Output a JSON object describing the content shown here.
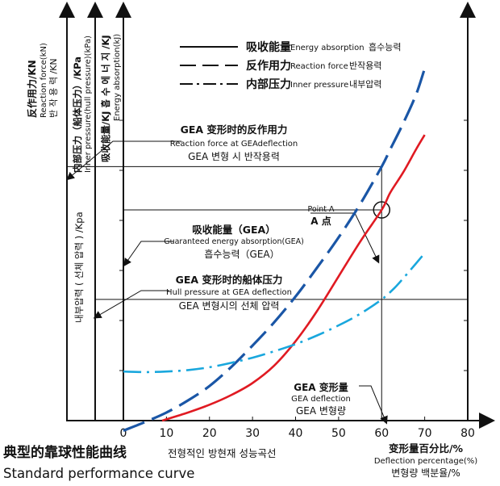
{
  "chart_data": {
    "type": "line",
    "title": "典型的靠球性能曲线",
    "title_ko": "전형적인 방현재 성능곡선",
    "title_en": "Standard performance curve",
    "xlabel": [
      "变形量百分比/%",
      "Deflection percentage(%)",
      "변형량 백분율/%"
    ],
    "xlim": [
      0,
      80
    ],
    "x_ticks": [
      "0",
      "10",
      "20",
      "30",
      "40",
      "50",
      "60",
      "70",
      "80"
    ],
    "axes": {
      "reaction": [
        "反作用力/KN",
        "Reaction force(kN)",
        "반 작 용 력 /KN"
      ],
      "pressure": [
        "内部压力（船体压力）/KPa",
        "Inner pressure(hull pressure)(kPa)"
      ],
      "energy": [
        "吸收能量/KJ 흡 수 에 너 지 /KJ",
        "Energy absorption(kJ)"
      ],
      "pressure_ko": "내부압력 ( 선체 압력 ) /Kpa"
    },
    "legend": [
      {
        "name": "吸收能量",
        "en": "Energy absorption",
        "ko": "흡수능력",
        "style": "solid"
      },
      {
        "name": "反作用力",
        "en": "Reaction force",
        "ko": "반작용력",
        "style": "dashed"
      },
      {
        "name": "内部压力",
        "en": "Inner pressure",
        "ko": "내부압력",
        "style": "dash-dot"
      }
    ],
    "series": [
      {
        "name": "Energy absorption",
        "style": "solid",
        "color": "#e01a22",
        "x": [
          9,
          15,
          20,
          25,
          30,
          35,
          40,
          45,
          50,
          55,
          60,
          62,
          65,
          68,
          70
        ],
        "y": [
          0.0,
          0.28,
          0.55,
          0.88,
          1.3,
          1.9,
          2.75,
          3.8,
          5.0,
          6.2,
          7.3,
          7.9,
          8.6,
          9.4,
          9.9
        ]
      },
      {
        "name": "Reaction force",
        "style": "dashed",
        "color": "#1a56a6",
        "x": [
          0,
          5,
          10,
          15,
          20,
          25,
          30,
          35,
          40,
          45,
          50,
          55,
          60,
          62,
          65,
          68,
          70
        ],
        "y": [
          -0.35,
          -0.05,
          0.28,
          0.7,
          1.2,
          1.85,
          2.6,
          3.4,
          4.3,
          5.3,
          6.35,
          7.5,
          8.8,
          9.4,
          10.3,
          11.3,
          12.2
        ]
      },
      {
        "name": "Inner pressure",
        "style": "dash-dot",
        "color": "#19a7dd",
        "x": [
          0,
          5,
          10,
          15,
          20,
          25,
          30,
          35,
          40,
          45,
          50,
          55,
          60,
          63,
          66,
          70
        ],
        "y": [
          1.7,
          1.68,
          1.7,
          1.75,
          1.85,
          2.0,
          2.18,
          2.4,
          2.65,
          2.95,
          3.3,
          3.7,
          4.2,
          4.6,
          5.1,
          5.8
        ]
      }
    ],
    "y_scale": [
      0,
      12
    ],
    "annotations": {
      "gea_reaction": [
        "GEA 变形时的反作用力",
        "Reaction force at GEAdeflection",
        "GEA 변형 시 반작용력"
      ],
      "gea_energy": [
        "吸收能量（GEA）",
        "Guaranteed energy absorption(GEA)",
        "흡수능력（GEA）"
      ],
      "gea_hull": [
        "GEA 变形时的船体压力",
        "Hull pressure at GEA deflection",
        "GEA 변형시의 선체 압력"
      ],
      "gea_deflection": [
        "GEA 变形量",
        "GEA deflection",
        "GEA 변형량"
      ],
      "point_a": [
        "Point A",
        "A 点"
      ]
    },
    "gea_deflection": 60,
    "gea_levels": {
      "reaction": 8.8,
      "energy": 7.3,
      "hull": 4.2
    }
  }
}
